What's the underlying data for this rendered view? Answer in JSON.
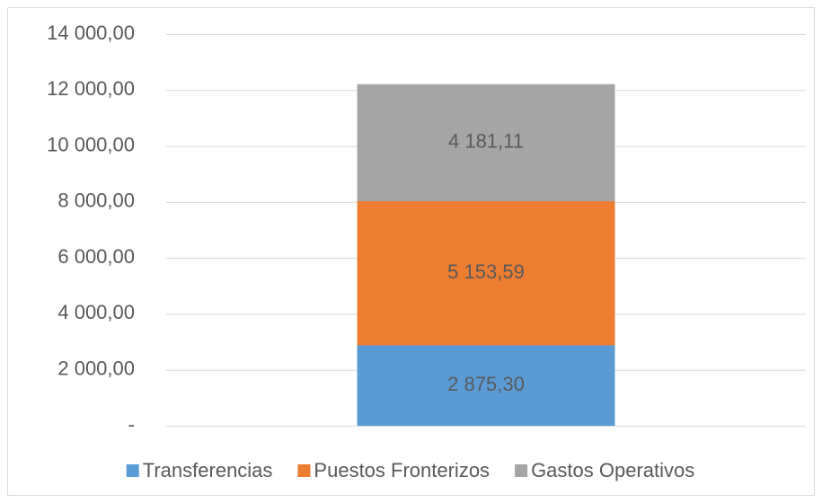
{
  "chart_data": {
    "type": "stacked_bar",
    "categories": [
      null
    ],
    "series": [
      {
        "name": "Transferencias",
        "color": "#5b9bd5",
        "values": [
          2875.3
        ],
        "value_labels": [
          "2 875,30"
        ]
      },
      {
        "name": "Puestos Fronterizos",
        "color": "#ed7d31",
        "values": [
          5153.59
        ],
        "value_labels": [
          "5 153,59"
        ]
      },
      {
        "name": "Gastos Operativos",
        "color": "#a5a5a5",
        "values": [
          4181.11
        ],
        "value_labels": [
          "4 181,11"
        ]
      }
    ],
    "ylim": [
      0,
      14000
    ],
    "yticks": [
      {
        "value": 0,
        "label": "-"
      },
      {
        "value": 2000,
        "label": "2 000,00"
      },
      {
        "value": 4000,
        "label": "4 000,00"
      },
      {
        "value": 6000,
        "label": "6 000,00"
      },
      {
        "value": 8000,
        "label": "8 000,00"
      },
      {
        "value": 10000,
        "label": "10 000,00"
      },
      {
        "value": 12000,
        "label": "12 000,00"
      },
      {
        "value": 14000,
        "label": "14 000,00"
      }
    ],
    "grid": true,
    "legend": "bottom"
  }
}
